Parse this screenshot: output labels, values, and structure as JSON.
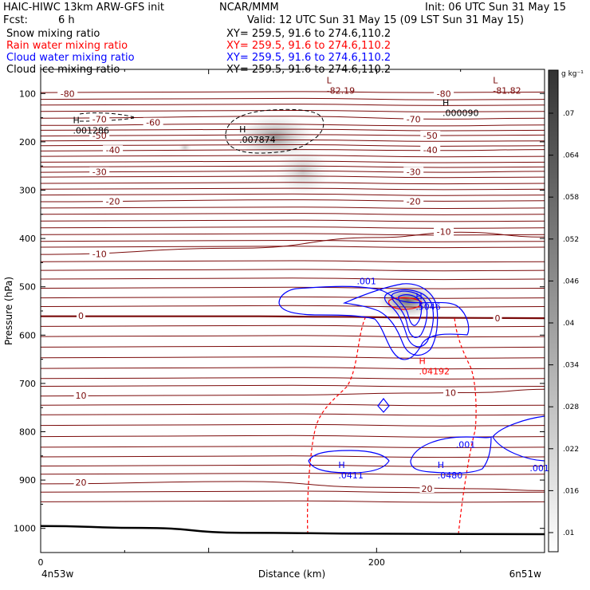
{
  "header": {
    "model_title": "HAIC-HIWC 13km ARW-GFS init",
    "org": "NCAR/MMM",
    "init_time": "Init: 06 UTC Sun 31 May 15",
    "fcst_label": "Fcst:",
    "fcst_value": "6 h",
    "valid_time": "Valid: 12 UTC Sun 31 May 15 (09 LST Sun 31 May 15)",
    "fields": [
      {
        "name": "Snow mixing ratio",
        "xy": "XY= 259.5, 91.6 to 274.6,110.2",
        "color": "#000000"
      },
      {
        "name": "Rain water mixing ratio",
        "xy": "XY= 259.5, 91.6 to 274.6,110.2",
        "color": "#ff0000"
      },
      {
        "name": "Cloud water mixing ratio",
        "xy": "XY= 259.5, 91.6 to 274.6,110.2",
        "color": "#0000ff"
      },
      {
        "name": "Cloud ice mixing ratio",
        "xy": "XY= 259.5, 91.6 to 274.6,110.2",
        "color": "#000000"
      }
    ]
  },
  "colorbar": {
    "unit": "g kg⁻¹",
    "ticks": [
      ".07",
      ".064",
      ".058",
      ".052",
      ".046",
      ".04",
      ".034",
      ".028",
      ".022",
      ".016",
      ".01"
    ]
  },
  "colors": {
    "temperature": "#7a0a0a",
    "rain": "#ff0000",
    "cloud_water": "#0000ff",
    "terrain": "#000000"
  },
  "chart_data": {
    "type": "contour-cross-section",
    "xlabel": "Distance (km)",
    "ylabel": "Pressure (hPa)",
    "xlim": [
      0,
      300
    ],
    "ylim": [
      1050,
      50
    ],
    "x_ticks": [
      "0",
      "200"
    ],
    "y_ticks": [
      "100",
      "200",
      "300",
      "400",
      "500",
      "600",
      "700",
      "800",
      "900",
      "1000"
    ],
    "y_tick_values": [
      100,
      200,
      300,
      400,
      500,
      600,
      700,
      800,
      900,
      1000
    ],
    "endpoint_left": "4n53w",
    "endpoint_right": "6n51w",
    "isotherm_labels": [
      {
        "text": "-80",
        "x": 16,
        "p": 100
      },
      {
        "text": "-80",
        "x": 240,
        "p": 100
      },
      {
        "text": "-70",
        "x": 35,
        "p": 153
      },
      {
        "text": "-70",
        "x": 222,
        "p": 153
      },
      {
        "text": "-60",
        "x": 67,
        "p": 160
      },
      {
        "text": "-50",
        "x": 35,
        "p": 187
      },
      {
        "text": "-50",
        "x": 232,
        "p": 187
      },
      {
        "text": "-40",
        "x": 43,
        "p": 217
      },
      {
        "text": "-40",
        "x": 232,
        "p": 217
      },
      {
        "text": "-30",
        "x": 35,
        "p": 262
      },
      {
        "text": "-30",
        "x": 222,
        "p": 262
      },
      {
        "text": "-20",
        "x": 43,
        "p": 323
      },
      {
        "text": "-20",
        "x": 222,
        "p": 323
      },
      {
        "text": "-10",
        "x": 35,
        "p": 432
      },
      {
        "text": "-10",
        "x": 240,
        "p": 386
      },
      {
        "text": "0",
        "x": 24,
        "p": 560
      },
      {
        "text": "0",
        "x": 272,
        "p": 565
      },
      {
        "text": "10",
        "x": 24,
        "p": 725
      },
      {
        "text": "10",
        "x": 244,
        "p": 719
      },
      {
        "text": "20",
        "x": 24,
        "p": 905
      },
      {
        "text": "20",
        "x": 230,
        "p": 918
      }
    ],
    "isotherm_lines": [
      {
        "label": "-80",
        "bold": false,
        "points": [
          [
            0,
            98
          ],
          [
            150,
            96
          ],
          [
            230,
            98
          ],
          [
            300,
            97
          ]
        ]
      },
      {
        "label": "-70",
        "bold": false,
        "points": [
          [
            0,
            151
          ],
          [
            150,
            147
          ],
          [
            240,
            153
          ],
          [
            300,
            151
          ]
        ]
      },
      {
        "label": "-60",
        "bold": false,
        "points": [
          [
            0,
            166
          ],
          [
            120,
            163
          ],
          [
            240,
            167
          ],
          [
            300,
            165
          ]
        ]
      },
      {
        "label": "-50",
        "bold": false,
        "points": [
          [
            0,
            188
          ],
          [
            150,
            185
          ],
          [
            240,
            187
          ],
          [
            300,
            186
          ]
        ]
      },
      {
        "label": "-40",
        "bold": false,
        "points": [
          [
            0,
            219
          ],
          [
            150,
            216
          ],
          [
            240,
            218
          ],
          [
            300,
            216
          ]
        ]
      },
      {
        "label": "-30",
        "bold": false,
        "points": [
          [
            0,
            263
          ],
          [
            150,
            260
          ],
          [
            240,
            263
          ],
          [
            300,
            261
          ]
        ]
      },
      {
        "label": "-20",
        "bold": false,
        "points": [
          [
            0,
            324
          ],
          [
            150,
            320
          ],
          [
            240,
            323
          ],
          [
            300,
            322
          ]
        ]
      },
      {
        "label": "-10",
        "bold": false,
        "points": [
          [
            0,
            433
          ],
          [
            120,
            420
          ],
          [
            200,
            398
          ],
          [
            250,
            387
          ],
          [
            300,
            397
          ]
        ]
      },
      {
        "label": "0",
        "bold": true,
        "points": [
          [
            0,
            561
          ],
          [
            130,
            561
          ],
          [
            170,
            562
          ],
          [
            230,
            564
          ],
          [
            300,
            565
          ]
        ]
      },
      {
        "label": "10",
        "bold": false,
        "points": [
          [
            0,
            726
          ],
          [
            150,
            724
          ],
          [
            220,
            720
          ],
          [
            260,
            719
          ],
          [
            300,
            712
          ]
        ]
      },
      {
        "label": "20",
        "bold": false,
        "points": [
          [
            0,
            908
          ],
          [
            120,
            903
          ],
          [
            200,
            915
          ],
          [
            260,
            918
          ],
          [
            300,
            922
          ]
        ]
      }
    ],
    "unlabeled_isotherms_p": [
      112,
      124,
      137,
      176,
      198,
      208,
      230,
      242,
      252,
      273,
      286,
      298,
      310,
      337,
      350,
      364,
      378,
      392,
      406,
      418,
      448,
      466,
      484,
      503,
      523,
      541,
      582,
      603,
      625,
      647,
      669,
      690,
      706,
      745,
      765,
      787,
      810,
      832,
      852,
      871,
      888,
      925,
      945
    ],
    "extrema": [
      {
        "kind": "L",
        "value": "-82.19",
        "x": 175,
        "p": 79
      },
      {
        "kind": "L",
        "value": "-81.82",
        "x": 274,
        "p": 79
      },
      {
        "kind": "H",
        "value": ".000090",
        "x": 244,
        "p": 125
      },
      {
        "kind": "H",
        "value": ".001286",
        "x": 24,
        "p": 161
      },
      {
        "kind": "H",
        "value": ".007874",
        "x": 123,
        "p": 180
      }
    ],
    "rain_labels": [
      {
        "kind": "H",
        "value": ".04192",
        "x": 230,
        "p": 660
      }
    ],
    "cloud_water_labels": [
      {
        "text": ".001",
        "x": 194,
        "p": 488
      },
      {
        "text": ".001",
        "x": 253,
        "p": 826
      },
      {
        "text": ".001",
        "x": 297,
        "p": 875
      },
      {
        "kind": "H",
        "value": ".5046",
        "x": 228,
        "p": 526
      },
      {
        "kind": "H",
        "value": ".0411",
        "x": 182,
        "p": 875
      },
      {
        "kind": "H",
        "value": ".0480",
        "x": 241,
        "p": 875
      }
    ],
    "terrain": [
      [
        0,
        995
      ],
      [
        60,
        999
      ],
      [
        120,
        1009
      ],
      [
        200,
        1011
      ],
      [
        300,
        1012
      ]
    ]
  }
}
